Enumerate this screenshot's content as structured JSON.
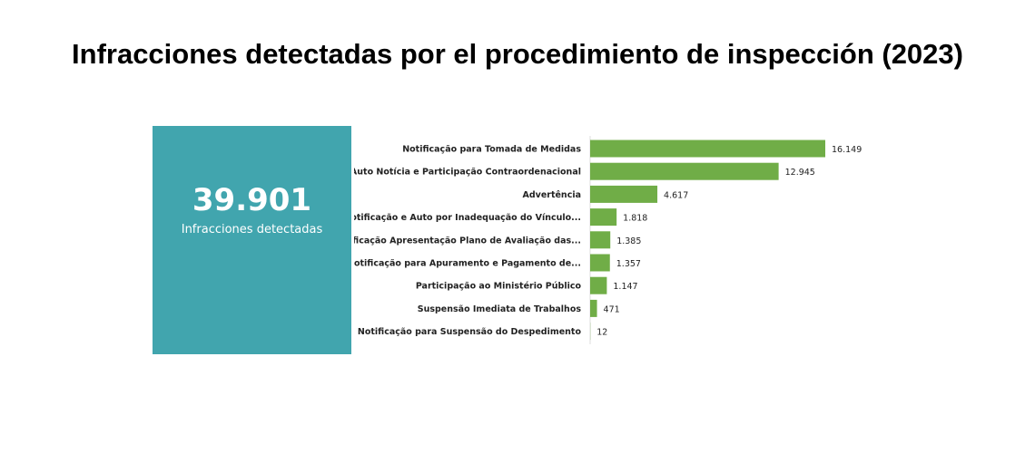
{
  "title": "Infracciones detectadas por el procedimiento de inspección (2023)",
  "kpi": {
    "value": "39.901",
    "label": "Infracciones detectadas",
    "color": "#41a5ae"
  },
  "chart_data": {
    "type": "bar",
    "orientation": "horizontal",
    "bar_color": "#70ad47",
    "categories": [
      "Notificação para Tomada de Medidas",
      "Auto Notícia e Participação Contraordenacional",
      "Advertência",
      "Notificação e Auto por Inadequação do Vínculo...",
      "Notificação Apresentação Plano de Avaliação das...",
      "Notificação para Apuramento e Pagamento de...",
      "Participação ao Ministério Público",
      "Suspensão Imediata de Trabalhos",
      "Notificação para Suspensão do Despedimento"
    ],
    "values": [
      16149,
      12945,
      4617,
      1818,
      1385,
      1357,
      1147,
      471,
      12
    ],
    "value_labels": [
      "16.149",
      "12.945",
      "4.617",
      "1.818",
      "1.385",
      "1.357",
      "1.147",
      "471",
      "12"
    ],
    "grid": false
  }
}
